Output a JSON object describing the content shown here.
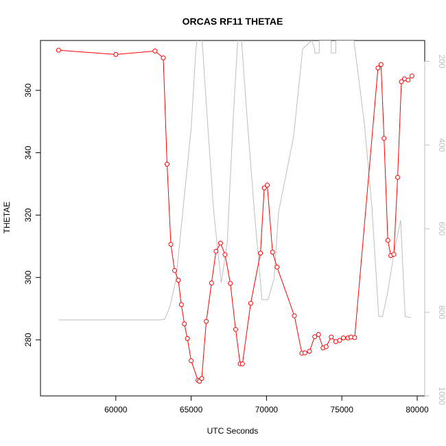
{
  "chart_data": {
    "type": "line",
    "title": "ORCAS RF11 THETAE",
    "xlabel": "UTC Seconds",
    "ylabel": "THETAE",
    "xlim": [
      55000,
      80500
    ],
    "ylim": [
      262,
      376
    ],
    "x_ticks": [
      60000,
      65000,
      70000,
      75000,
      80000
    ],
    "y_ticks": [
      280,
      300,
      320,
      340,
      360
    ],
    "y2_ticks": [
      200,
      400,
      600,
      800,
      1000
    ],
    "y2lim": [
      1000,
      150
    ],
    "y2_reversed": true,
    "grid": false,
    "legend": "none",
    "series": [
      {
        "color": "#ff0000",
        "marker": "open-circle",
        "axis": "left",
        "x": [
          56200,
          60000,
          62600,
          63150,
          63400,
          63650,
          63900,
          64150,
          64350,
          64550,
          64750,
          65000,
          65450,
          65550,
          65700,
          66000,
          66350,
          66650,
          66950,
          67250,
          67600,
          67950,
          68250,
          68400,
          68950,
          69600,
          69850,
          70050,
          70400,
          70700,
          71850,
          72350,
          72550,
          72850,
          73200,
          73450,
          73750,
          73950,
          74300,
          74600,
          74850,
          75100,
          75400,
          75600,
          75850,
          77400,
          77600,
          77800,
          78050,
          78250,
          78450,
          78700,
          78950,
          79150,
          79400,
          79650
        ],
        "y": [
          372.9,
          371.5,
          372.6,
          370.4,
          336.3,
          310.6,
          302.2,
          299.1,
          291.3,
          285.1,
          280.4,
          273.3,
          267.0,
          266.7,
          267.6,
          285.9,
          298.2,
          308.4,
          311.0,
          307.3,
          298.1,
          283.3,
          272.3,
          272.3,
          291.7,
          307.8,
          328.7,
          329.6,
          308.1,
          303.3,
          287.7,
          275.7,
          275.8,
          276.3,
          281.0,
          281.7,
          277.4,
          277.8,
          280.9,
          279.4,
          279.8,
          280.6,
          280.6,
          280.9,
          280.7,
          367.2,
          368.3,
          344.6,
          311.9,
          307.0,
          307.4,
          332.1,
          362.8,
          363.7,
          363.3,
          364.6
        ]
      },
      {
        "color": "#bebebe",
        "marker": "none",
        "axis": "right",
        "x": [
          56200,
          58000,
          60000,
          62000,
          63000,
          63250,
          63600,
          64000,
          64500,
          65000,
          65300,
          65600,
          66000,
          66500,
          67000,
          67400,
          67800,
          68200,
          68700,
          69200,
          69700,
          70100,
          70500,
          70800,
          71300,
          71800,
          72400,
          73000,
          73200,
          73200,
          73500,
          73500,
          73500,
          74300,
          74300,
          74300,
          74600,
          74600,
          75000,
          75800,
          76500,
          77000,
          77450,
          77700,
          78000,
          78500,
          78900,
          79200,
          79600
        ],
        "y": [
          818,
          818,
          818,
          818,
          818,
          816,
          785,
          720,
          540,
          360,
          180,
          80,
          300,
          560,
          730,
          630,
          330,
          80,
          330,
          560,
          770,
          770,
          720,
          560,
          470,
          380,
          170,
          150,
          170,
          180,
          180,
          150,
          150,
          150,
          180,
          180,
          180,
          150,
          150,
          150,
          350,
          550,
          810,
          810,
          760,
          650,
          580,
          810,
          813
        ]
      }
    ]
  }
}
